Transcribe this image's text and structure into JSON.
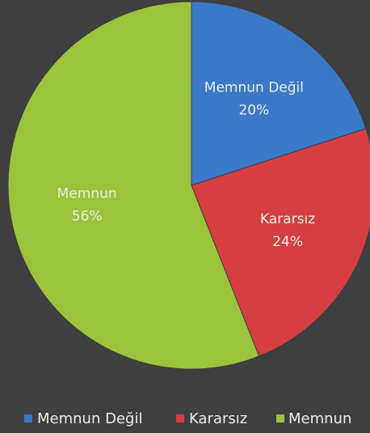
{
  "chart_data": {
    "type": "pie",
    "categories": [
      "Memnun Değil",
      "Kararsız",
      "Memnun"
    ],
    "values": [
      20,
      24,
      56
    ],
    "value_labels": [
      "20%",
      "24%",
      "56%"
    ],
    "colors": [
      "#3b78c8",
      "#d63f3f",
      "#9cc33b"
    ],
    "legend": "bottom"
  }
}
